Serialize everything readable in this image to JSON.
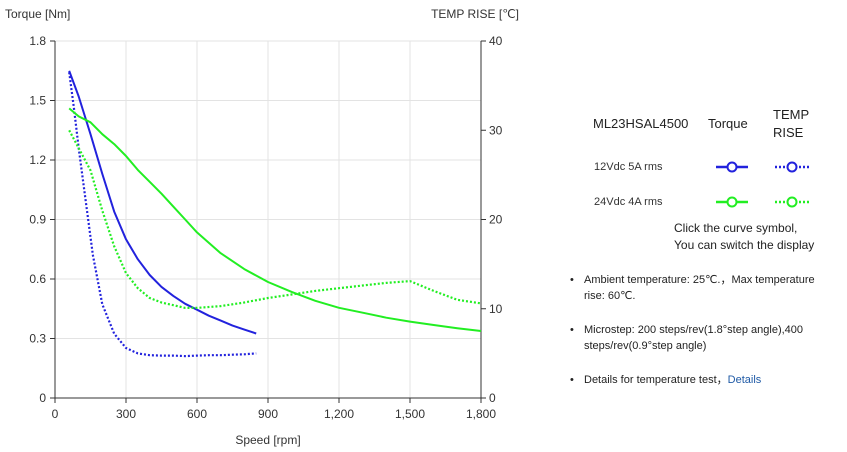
{
  "chart_data": {
    "type": "line",
    "title": "",
    "xlabel": "Speed [rpm]",
    "ylabel_left": "Torque  [Nm]",
    "ylabel_right": "TEMP RISE [℃]",
    "xlim": [
      0,
      1800
    ],
    "ylim_left": [
      0,
      1.8
    ],
    "ylim_right": [
      0,
      40
    ],
    "xticks": [
      0,
      300,
      600,
      900,
      1200,
      1500,
      1800
    ],
    "xtick_labels": [
      "0",
      "300",
      "600",
      "900",
      "1,200",
      "1,500",
      "1,800"
    ],
    "yticks_left": [
      0,
      0.3,
      0.6,
      0.9,
      1.2,
      1.5,
      1.8
    ],
    "ytick_labels_left": [
      "0",
      "0.3",
      "0.6",
      "0.9",
      "1.2",
      "1.5",
      "1.8"
    ],
    "yticks_right": [
      0,
      10,
      20,
      30,
      40
    ],
    "ytick_labels_right": [
      "0",
      "10",
      "20",
      "30",
      "40"
    ],
    "grid": true,
    "series": [
      {
        "name": "12Vdc  5A rms Torque",
        "axis": "left",
        "color": "#2222dd",
        "style": "solid",
        "x": [
          60,
          100,
          150,
          200,
          250,
          300,
          350,
          400,
          450,
          500,
          550,
          600,
          650,
          700,
          750,
          800,
          850
        ],
        "y": [
          1.65,
          1.52,
          1.33,
          1.13,
          0.94,
          0.8,
          0.7,
          0.62,
          0.56,
          0.515,
          0.475,
          0.445,
          0.415,
          0.39,
          0.365,
          0.345,
          0.325
        ]
      },
      {
        "name": "12Vdc  5A rms TEMP RISE",
        "axis": "right",
        "color": "#2222dd",
        "style": "dotted",
        "x": [
          60,
          80,
          100,
          130,
          160,
          200,
          250,
          300,
          350,
          400,
          450,
          500,
          550,
          600,
          650,
          700,
          750,
          800,
          850
        ],
        "y": [
          36.5,
          32.5,
          28.0,
          22.0,
          16.0,
          10.5,
          7.2,
          5.6,
          5.0,
          4.8,
          4.75,
          4.75,
          4.7,
          4.75,
          4.8,
          4.8,
          4.85,
          4.9,
          5.0
        ]
      },
      {
        "name": "24Vdc  4A rms Torque",
        "axis": "left",
        "color": "#22ee22",
        "style": "solid",
        "x": [
          60,
          100,
          150,
          200,
          250,
          300,
          350,
          400,
          450,
          500,
          550,
          600,
          700,
          800,
          900,
          1000,
          1100,
          1200,
          1300,
          1400,
          1500,
          1600,
          1700,
          1800
        ],
        "y": [
          1.46,
          1.42,
          1.39,
          1.33,
          1.28,
          1.22,
          1.15,
          1.09,
          1.03,
          0.965,
          0.9,
          0.835,
          0.73,
          0.65,
          0.585,
          0.535,
          0.49,
          0.455,
          0.43,
          0.405,
          0.385,
          0.368,
          0.352,
          0.338
        ]
      },
      {
        "name": "24Vdc  4A rms TEMP RISE",
        "axis": "right",
        "color": "#22ee22",
        "style": "dotted",
        "x": [
          60,
          100,
          150,
          200,
          250,
          300,
          350,
          400,
          450,
          500,
          550,
          600,
          700,
          800,
          900,
          1000,
          1100,
          1200,
          1300,
          1400,
          1500,
          1600,
          1700,
          1800
        ],
        "y": [
          30.0,
          28.0,
          25.5,
          21.0,
          17.0,
          14.0,
          12.3,
          11.2,
          10.7,
          10.4,
          10.1,
          10.1,
          10.3,
          10.7,
          11.2,
          11.6,
          12.0,
          12.3,
          12.6,
          12.9,
          13.1,
          12.0,
          11.0,
          10.6
        ]
      }
    ]
  },
  "legend": {
    "model": "ML23HSAL4500",
    "col_torque": "Torque",
    "col_temp": "TEMP RISE",
    "rows": [
      {
        "label": "12Vdc   5A rms",
        "color": "#2222dd"
      },
      {
        "label": "24Vdc   4A rms",
        "color": "#22ee22"
      }
    ],
    "hint_line1": "Click the curve symbol,",
    "hint_line2": "You can switch the display"
  },
  "notes": {
    "ambient": "Ambient temperature: 25℃.，Max temperature rise: 60℃.",
    "microstep": "Microstep: 200 steps/rev(1.8°step angle),400 steps/rev(0.9°step angle)",
    "details_text": "Details for temperature test，",
    "details_link": "Details"
  }
}
